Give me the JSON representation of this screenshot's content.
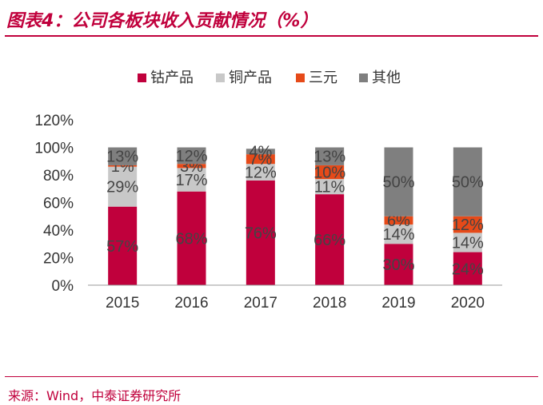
{
  "header": {
    "title": "图表4：公司各板块收入贡献情况（%）"
  },
  "footer": {
    "source": "来源：Wind，中泰证券研究所"
  },
  "chart_data": {
    "type": "bar",
    "stacked": true,
    "title": "图表4：公司各板块收入贡献情况（%）",
    "categories": [
      "2015",
      "2016",
      "2017",
      "2018",
      "2019",
      "2020"
    ],
    "series": [
      {
        "name": "钴产品",
        "color": "#c0003c",
        "values": [
          57,
          68,
          76,
          66,
          30,
          24
        ]
      },
      {
        "name": "铜产品",
        "color": "#c8c8c8",
        "values": [
          29,
          17,
          12,
          11,
          14,
          14
        ]
      },
      {
        "name": "三元",
        "color": "#e64a19",
        "values": [
          1,
          3,
          7,
          10,
          6,
          12
        ]
      },
      {
        "name": "其他",
        "color": "#7f7f7f",
        "values": [
          13,
          12,
          4,
          13,
          50,
          50
        ]
      }
    ],
    "y_ticks": [
      "0%",
      "20%",
      "40%",
      "60%",
      "80%",
      "100%",
      "120%"
    ],
    "ylim": [
      0,
      120
    ],
    "y_unit": "%",
    "legend_position": "top",
    "grid": false
  }
}
